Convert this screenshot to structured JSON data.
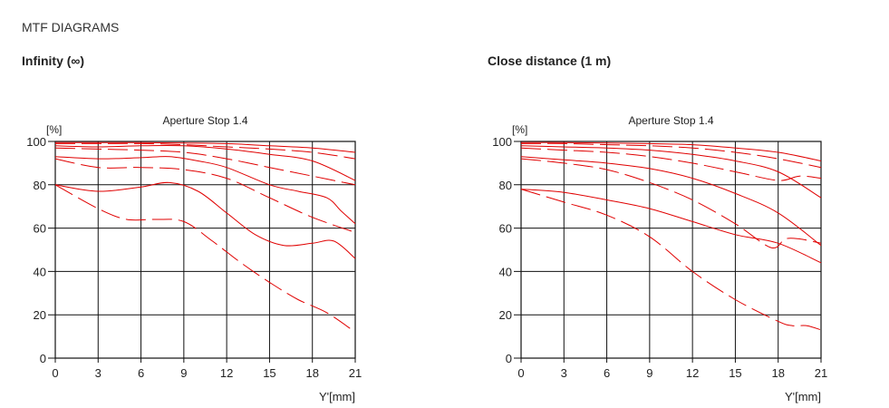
{
  "page_title": "MTF DIAGRAMS",
  "sections": [
    {
      "heading": "Infinity (∞)"
    },
    {
      "heading": "Close distance (1 m)"
    }
  ],
  "chart_data": [
    {
      "type": "line",
      "title": "Aperture Stop 1.4",
      "ylabel": "[%]",
      "xlabel": "Y'[mm]",
      "xlim": [
        0,
        21
      ],
      "ylim": [
        0,
        100
      ],
      "xticks": [
        0,
        3,
        6,
        9,
        12,
        15,
        18,
        21
      ],
      "yticks": [
        0,
        20,
        40,
        60,
        80,
        100
      ],
      "series": [
        {
          "name": "s1",
          "dash": "solid",
          "x": [
            0,
            3,
            6,
            9,
            12,
            15,
            18,
            21
          ],
          "y": [
            99.5,
            99.5,
            99.5,
            99.3,
            99,
            98,
            97,
            95
          ]
        },
        {
          "name": "s2",
          "dash": "dashed",
          "x": [
            0,
            3,
            6,
            9,
            12,
            15,
            18,
            21
          ],
          "y": [
            99,
            99,
            99,
            98.5,
            97.5,
            96.5,
            95,
            92
          ]
        },
        {
          "name": "s3",
          "dash": "solid",
          "x": [
            0,
            3,
            6,
            9,
            12,
            15,
            18,
            21
          ],
          "y": [
            98,
            97.5,
            98,
            98,
            96.5,
            94,
            91,
            82
          ]
        },
        {
          "name": "s4",
          "dash": "dashed",
          "x": [
            0,
            3,
            6,
            9,
            12,
            15,
            18,
            21
          ],
          "y": [
            97,
            96.5,
            96,
            95,
            92,
            88,
            84,
            80
          ]
        },
        {
          "name": "s5",
          "dash": "solid",
          "x": [
            0,
            3,
            6,
            8,
            10,
            12,
            15,
            17,
            19,
            20,
            21
          ],
          "y": [
            93,
            92,
            92.5,
            93,
            91,
            88,
            80,
            77,
            74,
            68,
            62
          ]
        },
        {
          "name": "s6",
          "dash": "dashed",
          "x": [
            0,
            3,
            6,
            9,
            12,
            15,
            18,
            21
          ],
          "y": [
            92,
            88,
            88,
            87,
            83,
            74,
            65,
            58
          ]
        },
        {
          "name": "s7",
          "dash": "solid",
          "x": [
            0,
            3,
            6,
            8,
            10,
            12,
            14,
            16,
            18,
            19.5,
            21
          ],
          "y": [
            80,
            77,
            79,
            81,
            77,
            67,
            57,
            52,
            53,
            54,
            46
          ]
        },
        {
          "name": "s8",
          "dash": "dashed",
          "x": [
            0,
            3,
            5,
            7,
            9,
            11,
            13,
            15,
            17,
            19,
            21
          ],
          "y": [
            80,
            69,
            64,
            64,
            63,
            54,
            44,
            35,
            27,
            21,
            12
          ]
        }
      ]
    },
    {
      "type": "line",
      "title": "Aperture Stop 1.4",
      "ylabel": "[%]",
      "xlabel": "Y'[mm]",
      "xlim": [
        0,
        21
      ],
      "ylim": [
        0,
        100
      ],
      "xticks": [
        0,
        3,
        6,
        9,
        12,
        15,
        18,
        21
      ],
      "yticks": [
        0,
        20,
        40,
        60,
        80,
        100
      ],
      "series": [
        {
          "name": "s1",
          "dash": "solid",
          "x": [
            0,
            3,
            6,
            9,
            12,
            15,
            18,
            21
          ],
          "y": [
            99.5,
            99.5,
            99.3,
            99,
            98.5,
            97,
            95,
            91
          ]
        },
        {
          "name": "s2",
          "dash": "dashed",
          "x": [
            0,
            3,
            6,
            9,
            12,
            15,
            18,
            21
          ],
          "y": [
            99,
            99,
            98.5,
            98,
            97,
            95,
            92,
            88
          ]
        },
        {
          "name": "s3",
          "dash": "solid",
          "x": [
            0,
            3,
            6,
            9,
            12,
            15,
            18,
            21
          ],
          "y": [
            98,
            97.5,
            97,
            96,
            94,
            91,
            86,
            74
          ]
        },
        {
          "name": "s4",
          "dash": "dashed",
          "x": [
            0,
            3,
            6,
            9,
            12,
            15,
            18,
            19.5,
            21
          ],
          "y": [
            97,
            96,
            95,
            93,
            90,
            86,
            82,
            84,
            83
          ]
        },
        {
          "name": "s5",
          "dash": "solid",
          "x": [
            0,
            3,
            6,
            9,
            12,
            15,
            18,
            21
          ],
          "y": [
            93,
            91.5,
            90,
            87.5,
            83,
            76,
            67,
            52
          ]
        },
        {
          "name": "s6",
          "dash": "dashed",
          "x": [
            0,
            3,
            6,
            9,
            12,
            15,
            17.5,
            18.5,
            19.5,
            21
          ],
          "y": [
            92,
            90,
            87,
            81,
            73,
            62,
            51,
            55,
            55,
            53
          ]
        },
        {
          "name": "s7",
          "dash": "solid",
          "x": [
            0,
            3,
            6,
            9,
            12,
            15,
            18,
            21
          ],
          "y": [
            78,
            76.5,
            73,
            69,
            63,
            57,
            53,
            44
          ]
        },
        {
          "name": "s8",
          "dash": "dashed",
          "x": [
            0,
            3,
            6,
            9,
            12,
            15,
            18,
            19,
            20,
            21
          ],
          "y": [
            78,
            72,
            66,
            56,
            40,
            27,
            17,
            15,
            15,
            13
          ]
        }
      ]
    }
  ]
}
